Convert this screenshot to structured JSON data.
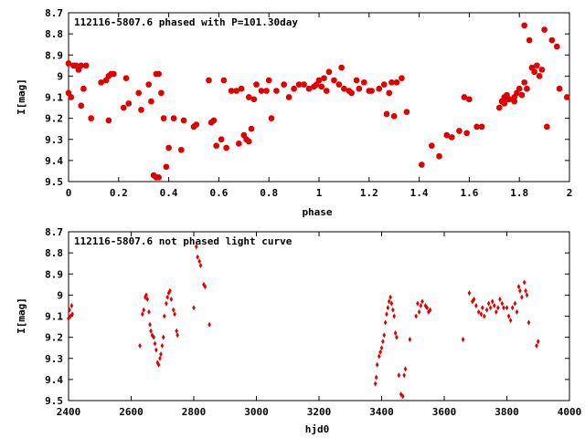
{
  "chart_data": [
    {
      "type": "scatter",
      "title": "112116-5807.6 phased with P=101.30day",
      "xlabel": "phase",
      "ylabel": "I[mag]",
      "xlim": [
        0,
        2
      ],
      "ylim": [
        8.7,
        9.5
      ],
      "y_inverted": true,
      "grid": false,
      "point_color": "#e00000",
      "xticks": [
        "0",
        "0.2",
        "0.4",
        "0.6",
        "0.8",
        "1",
        "1.2",
        "1.4",
        "1.6",
        "1.8",
        "2"
      ],
      "yticks": [
        "8.7",
        "8.8",
        "8.9",
        "9",
        "9.1",
        "9.2",
        "9.3",
        "9.4",
        "9.5"
      ],
      "points": [
        [
          0.0,
          8.94
        ],
        [
          0.0,
          9.08
        ],
        [
          0.01,
          9.1
        ],
        [
          0.02,
          8.95
        ],
        [
          0.03,
          8.95
        ],
        [
          0.04,
          8.97
        ],
        [
          0.05,
          8.95
        ],
        [
          0.05,
          9.14
        ],
        [
          0.06,
          9.06
        ],
        [
          0.07,
          8.95
        ],
        [
          0.09,
          9.2
        ],
        [
          0.13,
          9.03
        ],
        [
          0.15,
          9.02
        ],
        [
          0.16,
          9.21
        ],
        [
          0.16,
          9.0
        ],
        [
          0.17,
          8.99
        ],
        [
          0.18,
          8.99
        ],
        [
          0.22,
          9.15
        ],
        [
          0.23,
          9.01
        ],
        [
          0.24,
          9.13
        ],
        [
          0.28,
          9.08
        ],
        [
          0.29,
          9.16
        ],
        [
          0.32,
          9.04
        ],
        [
          0.33,
          9.12
        ],
        [
          0.34,
          9.47
        ],
        [
          0.35,
          8.99
        ],
        [
          0.35,
          9.48
        ],
        [
          0.36,
          8.99
        ],
        [
          0.36,
          9.48
        ],
        [
          0.37,
          9.08
        ],
        [
          0.38,
          9.2
        ],
        [
          0.39,
          9.43
        ],
        [
          0.4,
          9.34
        ],
        [
          0.42,
          9.2
        ],
        [
          0.45,
          9.35
        ],
        [
          0.46,
          9.21
        ],
        [
          0.5,
          9.24
        ],
        [
          0.51,
          9.23
        ],
        [
          0.56,
          9.02
        ],
        [
          0.57,
          9.22
        ],
        [
          0.58,
          9.21
        ],
        [
          0.59,
          9.33
        ],
        [
          0.61,
          9.3
        ],
        [
          0.62,
          9.02
        ],
        [
          0.63,
          9.34
        ],
        [
          0.65,
          9.07
        ],
        [
          0.67,
          9.07
        ],
        [
          0.68,
          9.32
        ],
        [
          0.69,
          9.06
        ],
        [
          0.7,
          9.28
        ],
        [
          0.71,
          9.3
        ],
        [
          0.72,
          9.1
        ],
        [
          0.72,
          9.31
        ],
        [
          0.73,
          9.25
        ],
        [
          0.74,
          9.11
        ],
        [
          0.75,
          9.04
        ],
        [
          0.77,
          9.07
        ],
        [
          0.79,
          9.07
        ],
        [
          0.8,
          9.02
        ],
        [
          0.81,
          9.2
        ],
        [
          0.83,
          9.07
        ],
        [
          0.86,
          9.04
        ],
        [
          0.88,
          9.1
        ],
        [
          0.9,
          9.06
        ],
        [
          0.92,
          9.04
        ],
        [
          0.94,
          9.04
        ],
        [
          0.96,
          9.06
        ],
        [
          0.98,
          9.05
        ],
        [
          0.99,
          9.04
        ],
        [
          1.0,
          9.02
        ],
        [
          1.01,
          9.05
        ],
        [
          1.02,
          9.01
        ],
        [
          1.03,
          9.07
        ],
        [
          1.04,
          8.98
        ],
        [
          1.06,
          9.02
        ],
        [
          1.08,
          9.04
        ],
        [
          1.09,
          8.96
        ],
        [
          1.1,
          9.06
        ],
        [
          1.12,
          9.07
        ],
        [
          1.13,
          9.08
        ],
        [
          1.15,
          9.02
        ],
        [
          1.16,
          9.06
        ],
        [
          1.18,
          9.03
        ],
        [
          1.2,
          9.07
        ],
        [
          1.21,
          9.07
        ],
        [
          1.24,
          9.06
        ],
        [
          1.26,
          9.04
        ],
        [
          1.27,
          9.18
        ],
        [
          1.28,
          9.08
        ],
        [
          1.29,
          9.03
        ],
        [
          1.3,
          9.19
        ],
        [
          1.31,
          9.03
        ],
        [
          1.33,
          9.01
        ],
        [
          1.35,
          9.17
        ],
        [
          1.41,
          9.42
        ],
        [
          1.45,
          9.33
        ],
        [
          1.48,
          9.38
        ],
        [
          1.51,
          9.28
        ],
        [
          1.53,
          9.29
        ],
        [
          1.56,
          9.26
        ],
        [
          1.58,
          9.1
        ],
        [
          1.59,
          9.27
        ],
        [
          1.6,
          9.11
        ],
        [
          1.63,
          9.24
        ],
        [
          1.65,
          9.24
        ],
        [
          1.72,
          9.15
        ],
        [
          1.73,
          9.12
        ],
        [
          1.74,
          9.1
        ],
        [
          1.74,
          9.13
        ],
        [
          1.75,
          9.09
        ],
        [
          1.75,
          9.11
        ],
        [
          1.76,
          9.11
        ],
        [
          1.78,
          9.1
        ],
        [
          1.78,
          9.12
        ],
        [
          1.79,
          9.08
        ],
        [
          1.8,
          9.06
        ],
        [
          1.81,
          9.09
        ],
        [
          1.82,
          8.76
        ],
        [
          1.82,
          9.03
        ],
        [
          1.83,
          9.06
        ],
        [
          1.84,
          8.83
        ],
        [
          1.85,
          8.96
        ],
        [
          1.86,
          8.98
        ],
        [
          1.87,
          8.95
        ],
        [
          1.88,
          9.0
        ],
        [
          1.89,
          8.97
        ],
        [
          1.9,
          8.78
        ],
        [
          1.91,
          9.24
        ],
        [
          1.93,
          8.83
        ],
        [
          1.95,
          8.86
        ],
        [
          1.96,
          9.06
        ],
        [
          1.99,
          9.1
        ]
      ]
    },
    {
      "type": "scatter",
      "title": "112116-5807.6 not phased light curve",
      "xlabel": "hjd0",
      "ylabel": "I[mag]",
      "xlim": [
        2400,
        4000
      ],
      "ylim": [
        8.7,
        9.5
      ],
      "y_inverted": true,
      "grid": false,
      "point_color": "#e00000",
      "xticks": [
        "2400",
        "2600",
        "2800",
        "3000",
        "3200",
        "3400",
        "3600",
        "3800",
        "4000"
      ],
      "yticks": [
        "8.7",
        "8.8",
        "8.9",
        "9",
        "9.1",
        "9.2",
        "9.3",
        "9.4",
        "9.5"
      ],
      "points": [
        [
          2400,
          9.11
        ],
        [
          2403,
          9.07
        ],
        [
          2406,
          9.1
        ],
        [
          2410,
          9.05
        ],
        [
          2412,
          9.09
        ],
        [
          2628,
          9.24
        ],
        [
          2636,
          9.09
        ],
        [
          2640,
          9.07
        ],
        [
          2645,
          9.01
        ],
        [
          2648,
          9.0
        ],
        [
          2652,
          9.02
        ],
        [
          2657,
          9.08
        ],
        [
          2660,
          9.14
        ],
        [
          2663,
          9.17
        ],
        [
          2667,
          9.19
        ],
        [
          2672,
          9.2
        ],
        [
          2676,
          9.23
        ],
        [
          2680,
          9.26
        ],
        [
          2684,
          9.32
        ],
        [
          2688,
          9.33
        ],
        [
          2692,
          9.3
        ],
        [
          2695,
          9.28
        ],
        [
          2699,
          9.24
        ],
        [
          2703,
          9.2
        ],
        [
          2706,
          9.1
        ],
        [
          2712,
          9.04
        ],
        [
          2716,
          9.01
        ],
        [
          2720,
          8.99
        ],
        [
          2724,
          8.98
        ],
        [
          2728,
          9.02
        ],
        [
          2735,
          9.07
        ],
        [
          2739,
          9.09
        ],
        [
          2745,
          9.17
        ],
        [
          2748,
          9.19
        ],
        [
          2800,
          9.06
        ],
        [
          2808,
          8.77
        ],
        [
          2812,
          8.82
        ],
        [
          2818,
          8.84
        ],
        [
          2822,
          8.86
        ],
        [
          2832,
          8.95
        ],
        [
          2836,
          8.96
        ],
        [
          2850,
          9.14
        ],
        [
          3380,
          9.42
        ],
        [
          3383,
          9.39
        ],
        [
          3386,
          9.33
        ],
        [
          3392,
          9.29
        ],
        [
          3396,
          9.27
        ],
        [
          3400,
          9.25
        ],
        [
          3404,
          9.22
        ],
        [
          3408,
          9.19
        ],
        [
          3412,
          9.13
        ],
        [
          3416,
          9.09
        ],
        [
          3420,
          9.06
        ],
        [
          3424,
          9.03
        ],
        [
          3428,
          9.01
        ],
        [
          3432,
          9.04
        ],
        [
          3436,
          9.07
        ],
        [
          3440,
          9.1
        ],
        [
          3444,
          9.18
        ],
        [
          3448,
          9.2
        ],
        [
          3455,
          9.38
        ],
        [
          3462,
          9.47
        ],
        [
          3468,
          9.48
        ],
        [
          3472,
          9.38
        ],
        [
          3476,
          9.35
        ],
        [
          3490,
          9.21
        ],
        [
          3510,
          9.1
        ],
        [
          3515,
          9.04
        ],
        [
          3520,
          9.08
        ],
        [
          3525,
          9.05
        ],
        [
          3530,
          9.03
        ],
        [
          3540,
          9.05
        ],
        [
          3545,
          9.06
        ],
        [
          3550,
          9.08
        ],
        [
          3555,
          9.07
        ],
        [
          3660,
          9.21
        ],
        [
          3680,
          8.99
        ],
        [
          3690,
          9.03
        ],
        [
          3695,
          9.02
        ],
        [
          3702,
          9.05
        ],
        [
          3710,
          9.08
        ],
        [
          3718,
          9.09
        ],
        [
          3722,
          9.06
        ],
        [
          3728,
          9.1
        ],
        [
          3736,
          9.07
        ],
        [
          3742,
          9.04
        ],
        [
          3748,
          9.06
        ],
        [
          3754,
          9.03
        ],
        [
          3760,
          9.05
        ],
        [
          3766,
          9.08
        ],
        [
          3772,
          9.06
        ],
        [
          3778,
          9.02
        ],
        [
          3785,
          9.04
        ],
        [
          3790,
          9.06
        ],
        [
          3800,
          9.06
        ],
        [
          3806,
          9.1
        ],
        [
          3812,
          9.12
        ],
        [
          3818,
          9.06
        ],
        [
          3826,
          9.04
        ],
        [
          3832,
          9.08
        ],
        [
          3838,
          8.96
        ],
        [
          3842,
          8.98
        ],
        [
          3848,
          9.01
        ],
        [
          3856,
          8.94
        ],
        [
          3860,
          8.98
        ],
        [
          3864,
          9.0
        ],
        [
          3870,
          9.13
        ],
        [
          3895,
          9.24
        ],
        [
          3900,
          9.22
        ]
      ]
    }
  ]
}
